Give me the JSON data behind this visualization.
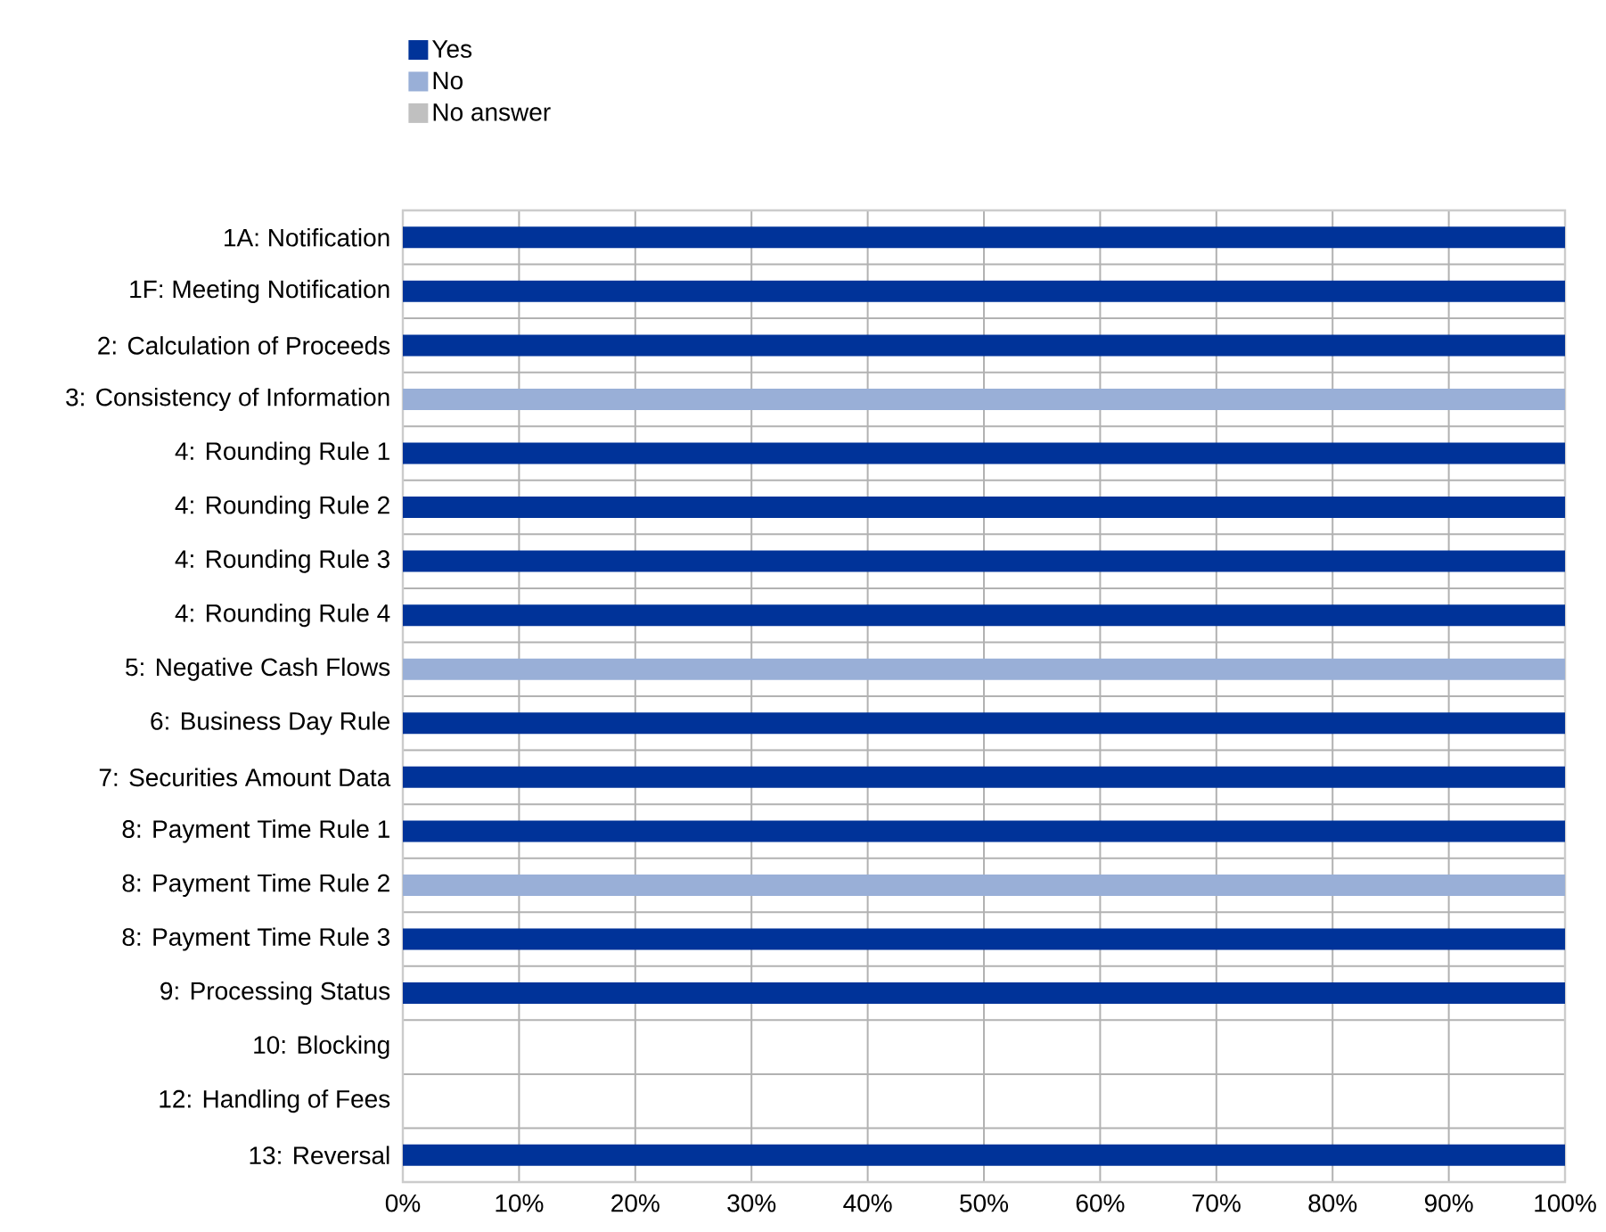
{
  "chart_data": {
    "type": "bar",
    "orientation": "horizontal",
    "stacked": true,
    "categories": [
      "1A: Notification",
      "1F: Meeting Notification",
      "2: Calculation of Proceeds",
      "3: Consistency of Information",
      "4: Rounding Rule 1",
      "4: Rounding Rule 2",
      "4: Rounding Rule 3",
      "4: Rounding Rule 4",
      "5: Negative Cash Flows",
      "6: Business Day Rule",
      "7: Securities Amount Data",
      "8: Payment Time Rule 1",
      "8: Payment Time Rule 2",
      "8: Payment Time Rule 3",
      "9: Processing Status",
      "10: Blocking",
      "12: Handling of Fees",
      "13: Reversal"
    ],
    "series": [
      {
        "name": "Yes",
        "color": "#003399",
        "values": [
          100,
          100,
          100,
          0,
          100,
          100,
          100,
          100,
          0,
          100,
          100,
          100,
          0,
          100,
          100,
          0,
          0,
          100
        ]
      },
      {
        "name": "No",
        "color": "#99afd7",
        "values": [
          0,
          0,
          0,
          100,
          0,
          0,
          0,
          0,
          100,
          0,
          0,
          0,
          100,
          0,
          0,
          0,
          0,
          0
        ]
      },
      {
        "name": "No answer",
        "color": "#c0c0c0",
        "values": [
          0,
          0,
          0,
          0,
          0,
          0,
          0,
          0,
          0,
          0,
          0,
          0,
          0,
          0,
          0,
          0,
          0,
          0
        ]
      }
    ],
    "xlim": [
      0,
      100
    ],
    "xticks": [
      {
        "value": 0,
        "label": "0%"
      },
      {
        "value": 10,
        "label": "10%"
      },
      {
        "value": 20,
        "label": "20%"
      },
      {
        "value": 30,
        "label": "30%"
      },
      {
        "value": 40,
        "label": "40%"
      },
      {
        "value": 50,
        "label": "50%"
      },
      {
        "value": 60,
        "label": "60%"
      },
      {
        "value": 70,
        "label": "70%"
      },
      {
        "value": 80,
        "label": "80%"
      },
      {
        "value": 90,
        "label": "90%"
      },
      {
        "value": 100,
        "label": "100%"
      }
    ],
    "grid": true,
    "legend": "top left"
  }
}
